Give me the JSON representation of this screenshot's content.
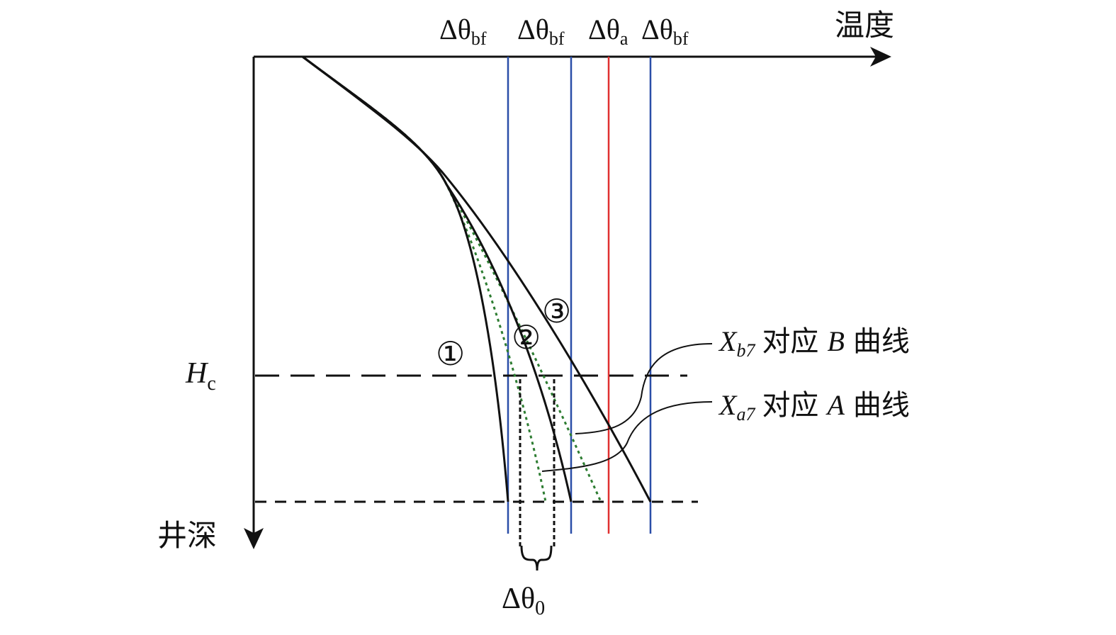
{
  "axes": {
    "x_label": "温度",
    "y_label": "井深",
    "hc_label": "H",
    "hc_sub": "c"
  },
  "top_labels": [
    {
      "sym": "Δθ",
      "sub": "bf",
      "color": "#2a4ea8"
    },
    {
      "sym": "Δθ",
      "sub": "bf",
      "color": "#2a4ea8"
    },
    {
      "sym": "Δθ",
      "sub": "a",
      "color": "#e03030"
    },
    {
      "sym": "Δθ",
      "sub": "bf",
      "color": "#2a4ea8"
    }
  ],
  "curve_markers": [
    "①",
    "②",
    "③"
  ],
  "legend": {
    "b": {
      "var": "X",
      "sub": "b7",
      "text": "对应",
      "curve": "B",
      "suffix": "曲线"
    },
    "a": {
      "var": "X",
      "sub": "a7",
      "text": "对应",
      "curve": "A",
      "suffix": "曲线"
    }
  },
  "bottom_label": {
    "sym": "Δθ",
    "sub": "0"
  },
  "colors": {
    "curve": "#111111",
    "dotted": "#2e7d32",
    "blue": "#2a4ea8",
    "red": "#e03030"
  }
}
